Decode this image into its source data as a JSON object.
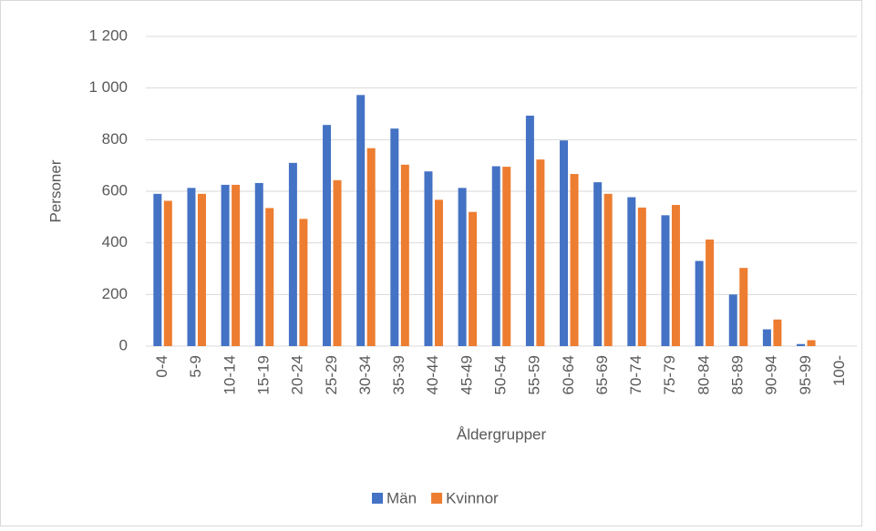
{
  "chart_data": {
    "type": "bar",
    "x_label": "Åldergrupper",
    "y_label": "Personer",
    "categories": [
      "0-4",
      "5-9",
      "10-14",
      "15-19",
      "20-24",
      "25-29",
      "30-34",
      "35-39",
      "40-44",
      "45-49",
      "50-54",
      "55-59",
      "60-64",
      "65-69",
      "70-74",
      "75-79",
      "80-84",
      "85-89",
      "90-94",
      "95-99",
      "100-"
    ],
    "series": [
      {
        "name": "Män",
        "color": "#4472c4",
        "values": [
          590,
          613,
          625,
          632,
          710,
          857,
          973,
          843,
          677,
          613,
          697,
          893,
          797,
          635,
          577,
          507,
          330,
          200,
          65,
          8,
          0
        ]
      },
      {
        "name": "Kvinnor",
        "color": "#ed7d31",
        "values": [
          563,
          590,
          625,
          535,
          493,
          643,
          767,
          703,
          567,
          520,
          695,
          723,
          667,
          590,
          537,
          547,
          413,
          303,
          103,
          23,
          0
        ]
      }
    ],
    "ylim": [
      0,
      1200
    ],
    "yticks": [
      0,
      200,
      400,
      600,
      800,
      {
        "value": 1000,
        "label": "1 000"
      },
      {
        "value": 1200,
        "label": "1 200"
      }
    ],
    "grid": true,
    "legend": "bottom"
  }
}
